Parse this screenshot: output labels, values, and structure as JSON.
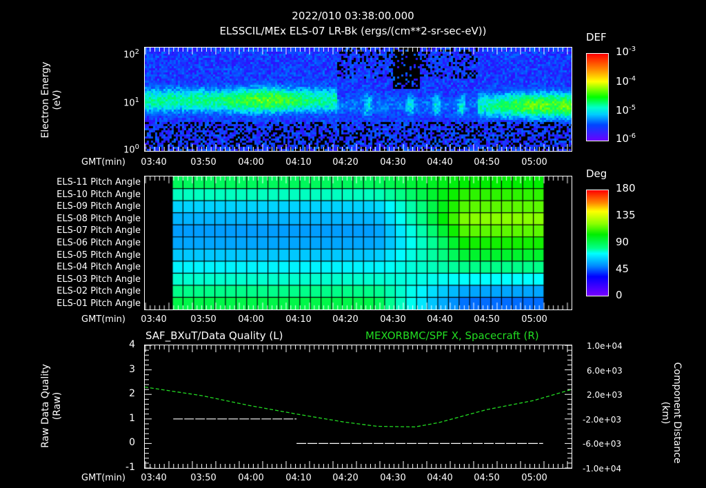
{
  "header": {
    "timestamp": "2022/010 03:38:00.000",
    "title": "ELSSCIL/MEx ELS-07 LR-Bk  (ergs/(cm**2-sr-sec-eV))"
  },
  "x_axis": {
    "label": "GMT(min)",
    "ticks": [
      "03:40",
      "03:50",
      "04:00",
      "04:10",
      "04:20",
      "04:30",
      "04:40",
      "04:50",
      "05:00"
    ]
  },
  "panel1": {
    "ylabel_line1": "Electron Energy",
    "ylabel_line2": "(eV)",
    "yticks": [
      {
        "base": "10",
        "exp": "2"
      },
      {
        "base": "10",
        "exp": "1"
      },
      {
        "base": "10",
        "exp": "0"
      }
    ],
    "colorbar": {
      "label": "DEF",
      "ticks": [
        {
          "base": "10",
          "exp": "-3"
        },
        {
          "base": "10",
          "exp": "-4"
        },
        {
          "base": "10",
          "exp": "-5"
        },
        {
          "base": "10",
          "exp": "-6"
        }
      ]
    }
  },
  "panel2": {
    "rows": [
      "ELS-11 Pitch Angle",
      "ELS-10 Pitch Angle",
      "ELS-09 Pitch Angle",
      "ELS-08 Pitch Angle",
      "ELS-07 Pitch Angle",
      "ELS-06 Pitch Angle",
      "ELS-05 Pitch Angle",
      "ELS-04 Pitch Angle",
      "ELS-03 Pitch Angle",
      "ELS-02 Pitch Angle",
      "ELS-01 Pitch Angle"
    ],
    "colorbar": {
      "label": "Deg",
      "ticks": [
        "180",
        "135",
        "90",
        "45",
        "0"
      ]
    }
  },
  "panel3": {
    "left_title": "SAF_BXuT/Data Quality (L)",
    "right_title": "MEXORBMC/SPF X, Spacecraft (R)",
    "right_title_color": "#22dd22",
    "ylabel_line1": "Raw Data Quality",
    "ylabel_line2": "(Raw)",
    "yticks_left": [
      "4",
      "3",
      "2",
      "1",
      "0",
      "-1"
    ],
    "yticks_right": [
      "1.0e+04",
      "6.0e+03",
      "2.0e+03",
      "-2.0e+03",
      "-6.0e+03",
      "-1.0e+04"
    ],
    "ylabel_right_line1": "Component Distance",
    "ylabel_right_line2": "(km)"
  },
  "chart_data": [
    {
      "type": "heatmap",
      "title": "ELSSCIL/MEx ELS-07 LR-Bk (ergs/(cm**2-sr-sec-eV))",
      "subtitle": "2022/010 03:38:00.000",
      "xlabel": "GMT(min)",
      "ylabel": "Electron Energy (eV)",
      "yscale": "log",
      "ylim": [
        1,
        150
      ],
      "xlim": [
        "03:38",
        "05:08"
      ],
      "colorbar": {
        "label": "DEF",
        "scale": "log",
        "range": [
          1e-06,
          0.001
        ]
      },
      "description": "Spectrogram: enhanced flux band 8-50 eV from 03:40-04:15 (peak ~1e-4 near 04:00), patchy cyan bursts 04:15-04:50, strong band 10-30 eV from 04:50-05:08."
    },
    {
      "type": "heatmap",
      "title": "Pitch Angle",
      "xlabel": "GMT(min)",
      "rows": [
        "ELS-11",
        "ELS-10",
        "ELS-09",
        "ELS-08",
        "ELS-07",
        "ELS-06",
        "ELS-05",
        "ELS-04",
        "ELS-03",
        "ELS-02",
        "ELS-01"
      ],
      "x_start": "03:44",
      "x_end": "05:02",
      "colorbar": {
        "label": "Deg",
        "range": [
          0,
          180
        ]
      },
      "approx_values": {
        "03:45": [
          100,
          85,
          70,
          62,
          58,
          60,
          68,
          78,
          88,
          98,
          105
        ],
        "04:20": [
          100,
          88,
          72,
          65,
          60,
          62,
          70,
          78,
          86,
          95,
          100
        ],
        "04:30": [
          108,
          100,
          95,
          88,
          80,
          75,
          72,
          72,
          75,
          80,
          82
        ],
        "04:45": [
          110,
          115,
          120,
          125,
          120,
          112,
          105,
          95,
          80,
          62,
          50
        ],
        "05:00": [
          110,
          115,
          118,
          120,
          118,
          112,
          105,
          95,
          80,
          65,
          55
        ]
      }
    },
    {
      "type": "line",
      "xlabel": "GMT(min)",
      "series": [
        {
          "name": "SAF_BXuT/Data Quality (L)",
          "axis": "left",
          "color": "#ffffff",
          "x": [
            "03:44",
            "04:10",
            "04:10",
            "05:02"
          ],
          "y": [
            1,
            1,
            0,
            0
          ]
        },
        {
          "name": "MEXORBMC/SPF X, Spacecraft (R)",
          "axis": "right",
          "color": "#22dd22",
          "style": "dashed",
          "x": [
            "03:38",
            "03:50",
            "04:00",
            "04:10",
            "04:20",
            "04:27",
            "04:35",
            "04:40",
            "04:50",
            "05:00",
            "05:08"
          ],
          "y": [
            3200,
            1800,
            200,
            -1200,
            -2500,
            -3200,
            -3300,
            -2600,
            -500,
            1000,
            2800
          ]
        }
      ],
      "ylim_left": [
        -1,
        4
      ],
      "ylim_right": [
        -10000,
        10000
      ],
      "ylabel_left": "Raw Data Quality (Raw)",
      "ylabel_right": "Component Distance (km)"
    }
  ]
}
